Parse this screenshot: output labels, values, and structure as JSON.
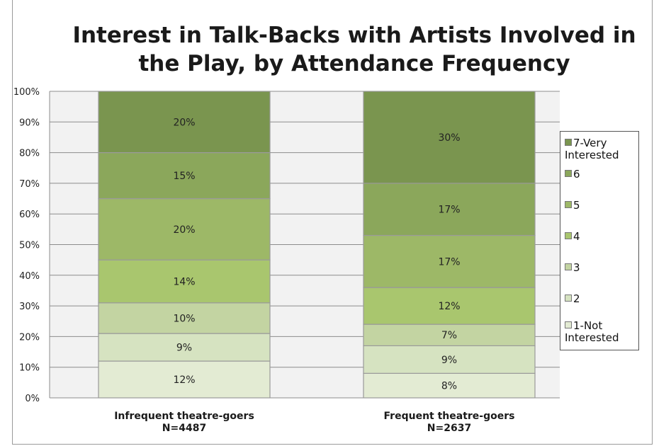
{
  "chart_data": {
    "type": "bar",
    "stacked": true,
    "title": "Interest in Talk-Backs with Artists Involved in the Play, by Attendance Frequency",
    "categories": [
      [
        "Infrequent theatre-goers",
        "N=4487"
      ],
      [
        "Frequent theatre-goers",
        "N=2637"
      ]
    ],
    "y_ticks": [
      "0%",
      "10%",
      "20%",
      "30%",
      "40%",
      "50%",
      "60%",
      "70%",
      "80%",
      "90%",
      "100%"
    ],
    "ylim": [
      0,
      100
    ],
    "grid": true,
    "legend_position": "right",
    "series": [
      {
        "name": "1-Not Interested",
        "color": "#e3ebd3",
        "values": [
          12,
          8
        ],
        "labels": [
          "12%",
          "8%"
        ]
      },
      {
        "name": "2",
        "color": "#d6e3c1",
        "values": [
          9,
          9
        ],
        "labels": [
          "9%",
          "9%"
        ]
      },
      {
        "name": "3",
        "color": "#c3d4a2",
        "values": [
          10,
          7
        ],
        "labels": [
          "10%",
          "7%"
        ]
      },
      {
        "name": "4",
        "color": "#a9c66e",
        "values": [
          14,
          12
        ],
        "labels": [
          "14%",
          "12%"
        ]
      },
      {
        "name": "5",
        "color": "#9db867",
        "values": [
          20,
          17
        ],
        "labels": [
          "20%",
          "17%"
        ]
      },
      {
        "name": "6",
        "color": "#8ba75b",
        "values": [
          15,
          17
        ],
        "labels": [
          "15%",
          "17%"
        ]
      },
      {
        "name": "7-Very Interested",
        "color": "#7a954f",
        "values": [
          20,
          30
        ],
        "labels": [
          "20%",
          "30%"
        ]
      }
    ]
  }
}
